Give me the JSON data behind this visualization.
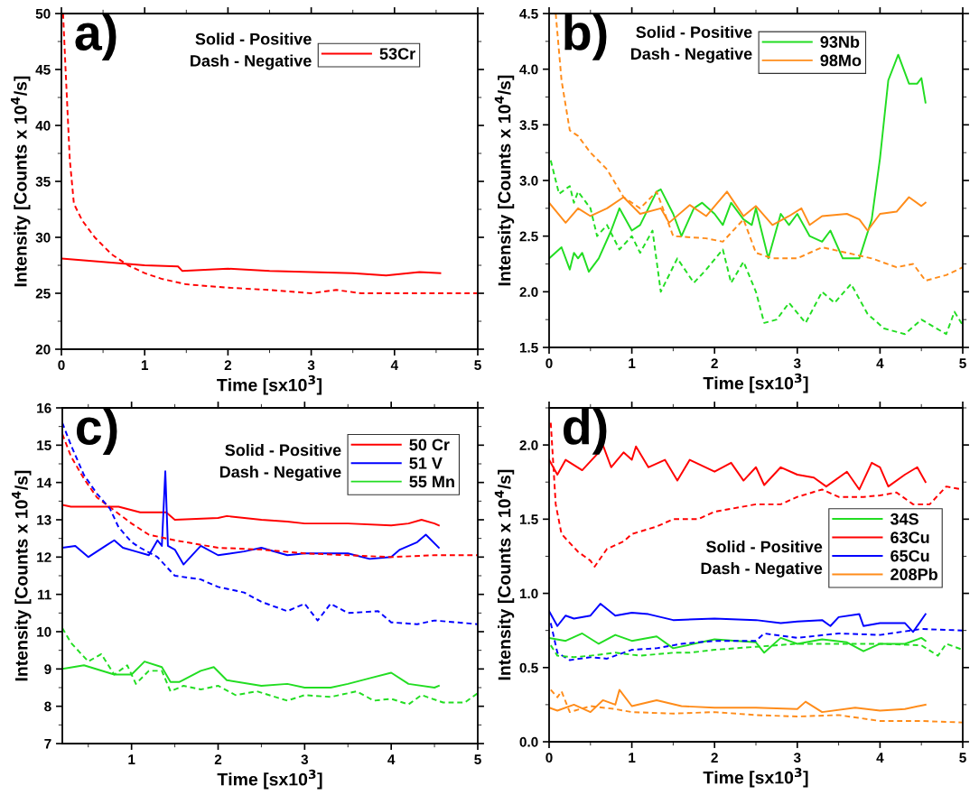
{
  "chart_data": [
    {
      "type": "line",
      "xlabel": "Time [sx10$^{3}$]",
      "ylabel": "Intensity [Counts x 10$^{4}$/s]",
      "annotations": [
        "a)",
        "Solid - Positive",
        "Dash - Negative"
      ],
      "xlim": [
        0,
        5
      ],
      "xticks": [
        0,
        1,
        2,
        3,
        4,
        5
      ],
      "ylim": [
        20,
        50
      ],
      "yticks": [
        20,
        25,
        30,
        35,
        40,
        45,
        50
      ],
      "legend": "top right",
      "grid": false,
      "series": [
        {
          "name": "53Cr",
          "color": "#ff0000",
          "line_style": "solid",
          "x": [
            0,
            0.5,
            1.0,
            1.4,
            1.45,
            2,
            2.5,
            3,
            3.5,
            3.9,
            4.3,
            4.55
          ],
          "values": [
            28.1,
            27.8,
            27.5,
            27.4,
            27.0,
            27.2,
            27.0,
            26.9,
            26.8,
            26.6,
            26.9,
            26.8
          ]
        },
        {
          "color": "#ff0000",
          "line_style": "dashed",
          "x": [
            0.02,
            0.05,
            0.1,
            0.15,
            0.25,
            0.4,
            0.6,
            0.8,
            1.0,
            1.2,
            1.5,
            2.0,
            2.5,
            3.0,
            3.3,
            3.6,
            4.0,
            4.5,
            5.0
          ],
          "values": [
            50,
            45,
            37,
            33,
            31.5,
            30,
            28.5,
            27.5,
            26.8,
            26.3,
            25.8,
            25.5,
            25.3,
            25.0,
            25.3,
            25.0,
            25.0,
            25.0,
            25.0
          ]
        }
      ]
    },
    {
      "type": "line",
      "xlabel": "Time [sx10$^{3}$]",
      "ylabel": "Intensity [Counts x 10$^{4}$/s]",
      "annotations": [
        "b)",
        "Solid - Positive",
        "Dash - Negative"
      ],
      "xlim": [
        0,
        5
      ],
      "xticks": [
        0,
        1,
        2,
        3,
        4,
        5
      ],
      "ylim": [
        1.5,
        4.5
      ],
      "yticks": [
        1.5,
        {
          "value": 2,
          "label": "2.0"
        },
        2.5,
        {
          "value": 3,
          "label": "3.0"
        },
        3.5,
        {
          "value": 4,
          "label": "4.0"
        },
        4.5
      ],
      "legend": "top right",
      "grid": false,
      "series": [
        {
          "name": "93Nb",
          "color": "#22dd22",
          "line_style": "solid",
          "x": [
            0,
            0.15,
            0.25,
            0.3,
            0.35,
            0.4,
            0.48,
            0.6,
            0.75,
            0.85,
            1.0,
            1.1,
            1.2,
            1.3,
            1.35,
            1.5,
            1.6,
            1.75,
            1.85,
            2.0,
            2.1,
            2.2,
            2.35,
            2.45,
            2.5,
            2.65,
            2.8,
            2.9,
            3.0,
            3.15,
            3.3,
            3.4,
            3.55,
            3.75,
            3.9,
            4.0,
            4.1,
            4.22,
            4.35,
            4.45,
            4.5,
            4.55
          ],
          "values": [
            2.3,
            2.4,
            2.2,
            2.35,
            2.3,
            2.35,
            2.18,
            2.3,
            2.55,
            2.75,
            2.55,
            2.6,
            2.75,
            2.9,
            2.92,
            2.7,
            2.5,
            2.75,
            2.8,
            2.7,
            2.6,
            2.8,
            2.65,
            2.6,
            2.75,
            2.3,
            2.7,
            2.6,
            2.7,
            2.5,
            2.45,
            2.55,
            2.3,
            2.3,
            2.65,
            3.2,
            3.9,
            4.13,
            3.87,
            3.87,
            3.92,
            3.7
          ]
        },
        {
          "name": "98Mo",
          "color": "#ff8c1a",
          "line_style": "solid",
          "x": [
            0,
            0.2,
            0.35,
            0.5,
            0.7,
            0.9,
            1.1,
            1.35,
            1.45,
            1.7,
            1.9,
            2.15,
            2.35,
            2.5,
            2.7,
            2.9,
            3.05,
            3.15,
            3.3,
            3.6,
            3.75,
            3.85,
            4.0,
            4.2,
            4.35,
            4.5,
            4.55
          ],
          "values": [
            2.8,
            2.62,
            2.75,
            2.68,
            2.75,
            2.85,
            2.7,
            2.75,
            2.62,
            2.78,
            2.68,
            2.9,
            2.68,
            2.77,
            2.6,
            2.68,
            2.75,
            2.6,
            2.68,
            2.7,
            2.65,
            2.55,
            2.7,
            2.72,
            2.85,
            2.77,
            2.8
          ]
        },
        {
          "color": "#ff8c1a",
          "line_style": "dashed",
          "x": [
            0.08,
            0.15,
            0.25,
            0.35,
            0.5,
            0.7,
            0.9,
            1.1,
            1.3,
            1.5,
            1.9,
            2.1,
            2.35,
            2.5,
            2.7,
            3.0,
            3.3,
            3.6,
            3.9,
            4.2,
            4.4,
            4.55,
            4.8,
            5.0
          ],
          "values": [
            4.5,
            3.9,
            3.45,
            3.4,
            3.25,
            3.1,
            2.85,
            2.75,
            2.9,
            2.5,
            2.48,
            2.45,
            2.65,
            2.35,
            2.3,
            2.3,
            2.4,
            2.35,
            2.3,
            2.22,
            2.25,
            2.1,
            2.15,
            2.22
          ]
        },
        {
          "color": "#22dd22",
          "line_style": "dashed",
          "x": [
            0.02,
            0.12,
            0.25,
            0.3,
            0.35,
            0.5,
            0.58,
            0.7,
            0.85,
            1.0,
            1.1,
            1.25,
            1.35,
            1.55,
            1.75,
            1.9,
            2.1,
            2.2,
            2.35,
            2.5,
            2.6,
            2.75,
            2.9,
            3.1,
            3.3,
            3.45,
            3.65,
            3.85,
            4.05,
            4.3,
            4.5,
            4.8,
            4.9,
            5.0
          ],
          "values": [
            3.18,
            2.88,
            2.95,
            2.8,
            2.9,
            2.75,
            2.5,
            2.6,
            2.38,
            2.5,
            2.35,
            2.55,
            2.0,
            2.3,
            2.08,
            2.2,
            2.38,
            2.08,
            2.27,
            2.0,
            1.72,
            1.75,
            1.9,
            1.72,
            2.0,
            1.9,
            2.07,
            1.8,
            1.67,
            1.62,
            1.75,
            1.62,
            1.82,
            1.7
          ]
        }
      ]
    },
    {
      "type": "line",
      "xlabel": "Time [sx10$^{3}$]",
      "ylabel": "Intensity [Counts x 10$^{4}$/s]",
      "annotations": [
        "c)",
        "Solid - Positive",
        "Dash - Negative"
      ],
      "xlim": [
        0.2,
        5
      ],
      "xticks": [
        1,
        2,
        3,
        4,
        5
      ],
      "ylim": [
        7,
        16
      ],
      "yticks": [
        7,
        8,
        9,
        10,
        11,
        12,
        13,
        14,
        15,
        16
      ],
      "legend": "top right",
      "grid": false,
      "series": [
        {
          "name": "50 Cr",
          "color": "#ff0000",
          "line_style": "solid",
          "x": [
            0.2,
            0.3,
            0.6,
            0.85,
            1.1,
            1.4,
            1.5,
            2.0,
            2.1,
            2.5,
            2.8,
            3.0,
            3.5,
            4.0,
            4.2,
            4.35,
            4.5,
            4.55
          ],
          "values": [
            13.4,
            13.35,
            13.35,
            13.35,
            13.2,
            13.2,
            13.0,
            13.05,
            13.1,
            13.0,
            12.95,
            12.9,
            12.9,
            12.85,
            12.9,
            13.0,
            12.9,
            12.85
          ]
        },
        {
          "name": "51 V",
          "color": "#0000ff",
          "line_style": "solid",
          "x": [
            0.2,
            0.35,
            0.5,
            0.7,
            0.8,
            0.9,
            1.05,
            1.2,
            1.3,
            1.35,
            1.39,
            1.42,
            1.5,
            1.6,
            1.8,
            2.0,
            2.3,
            2.5,
            2.8,
            3.0,
            3.3,
            3.5,
            3.75,
            4.0,
            4.1,
            4.3,
            4.4,
            4.55
          ],
          "values": [
            12.25,
            12.3,
            12.0,
            12.3,
            12.45,
            12.25,
            12.15,
            12.05,
            12.45,
            12.3,
            14.3,
            12.3,
            12.2,
            11.8,
            12.3,
            12.05,
            12.15,
            12.25,
            12.05,
            12.1,
            12.1,
            12.1,
            11.95,
            12.0,
            12.2,
            12.4,
            12.6,
            12.25
          ]
        },
        {
          "name": "55 Mn",
          "color": "#22dd22",
          "line_style": "solid",
          "x": [
            0.2,
            0.45,
            0.8,
            1.0,
            1.15,
            1.35,
            1.45,
            1.55,
            1.8,
            1.95,
            2.1,
            2.5,
            2.8,
            3.0,
            3.3,
            3.5,
            3.75,
            4.0,
            4.2,
            4.5,
            4.55
          ],
          "values": [
            9.0,
            9.1,
            8.85,
            8.85,
            9.2,
            9.05,
            8.65,
            8.65,
            8.95,
            9.05,
            8.7,
            8.55,
            8.6,
            8.5,
            8.5,
            8.6,
            8.75,
            8.9,
            8.6,
            8.5,
            8.55
          ]
        },
        {
          "color": "#ff0000",
          "line_style": "dashed",
          "x": [
            0.2,
            0.3,
            0.45,
            0.6,
            0.8,
            1.0,
            1.2,
            1.5,
            2.0,
            2.5,
            3.0,
            3.5,
            4.0,
            4.5,
            5.0
          ],
          "values": [
            15.3,
            14.7,
            14.1,
            13.6,
            13.25,
            12.9,
            12.6,
            12.45,
            12.25,
            12.2,
            12.1,
            12.05,
            12.0,
            12.05,
            12.05
          ]
        },
        {
          "color": "#0000ff",
          "line_style": "dashed",
          "x": [
            0.2,
            0.3,
            0.45,
            0.6,
            0.75,
            0.85,
            1.0,
            1.1,
            1.3,
            1.5,
            1.8,
            2.0,
            2.3,
            2.5,
            2.8,
            3.0,
            3.15,
            3.3,
            3.5,
            3.85,
            4.0,
            4.3,
            4.5,
            5.0
          ],
          "values": [
            15.6,
            15.0,
            14.2,
            13.7,
            13.3,
            12.8,
            12.4,
            12.25,
            12.0,
            11.5,
            11.4,
            11.2,
            11.05,
            10.8,
            10.55,
            10.75,
            10.3,
            10.75,
            10.5,
            10.55,
            10.25,
            10.2,
            10.3,
            10.2
          ]
        },
        {
          "color": "#22dd22",
          "line_style": "dashed",
          "x": [
            0.2,
            0.3,
            0.5,
            0.65,
            0.8,
            0.95,
            1.05,
            1.2,
            1.35,
            1.45,
            1.6,
            1.8,
            2.0,
            2.2,
            2.45,
            2.8,
            3.0,
            3.3,
            3.6,
            3.8,
            4.0,
            4.2,
            4.35,
            4.6,
            4.85,
            5.0
          ],
          "values": [
            10.1,
            9.7,
            9.2,
            9.4,
            8.85,
            9.1,
            8.6,
            8.95,
            8.95,
            8.4,
            8.55,
            8.45,
            8.55,
            8.3,
            8.4,
            8.15,
            8.3,
            8.25,
            8.4,
            8.15,
            8.2,
            8.05,
            8.3,
            8.1,
            8.1,
            8.35
          ]
        }
      ]
    },
    {
      "type": "line",
      "xlabel": "Time [sx10$^{3}$]",
      "ylabel": "Intensity [Counts x 10$^{4}$/s]",
      "annotations": [
        "d)",
        "Solid - Positive",
        "Dash - Negative"
      ],
      "xlim": [
        0,
        5
      ],
      "xticks": [
        0,
        1,
        2,
        3,
        4,
        5
      ],
      "ylim": [
        0,
        2.25
      ],
      "yticks": [
        {
          "value": 0,
          "label": "0.0"
        },
        0.5,
        {
          "value": 1,
          "label": "1.0"
        },
        1.5,
        {
          "value": 2,
          "label": "2.0"
        }
      ],
      "legend": "right",
      "grid": false,
      "series": [
        {
          "name": "34S",
          "color": "#22dd22",
          "line_style": "solid",
          "x": [
            0,
            0.2,
            0.4,
            0.6,
            0.8,
            1.0,
            1.3,
            1.5,
            2.0,
            2.5,
            2.6,
            2.8,
            3.0,
            3.3,
            3.6,
            3.8,
            4.0,
            4.3,
            4.5,
            4.55
          ],
          "values": [
            0.7,
            0.68,
            0.73,
            0.66,
            0.72,
            0.68,
            0.71,
            0.63,
            0.69,
            0.67,
            0.6,
            0.7,
            0.66,
            0.69,
            0.67,
            0.61,
            0.66,
            0.66,
            0.7,
            0.68
          ]
        },
        {
          "name": "63Cu",
          "color": "#ff0000",
          "line_style": "solid",
          "x": [
            0,
            0.1,
            0.2,
            0.4,
            0.6,
            0.65,
            0.75,
            0.9,
            1.0,
            1.05,
            1.2,
            1.4,
            1.55,
            1.7,
            2.0,
            2.2,
            2.35,
            2.5,
            2.6,
            2.8,
            3.0,
            3.2,
            3.35,
            3.6,
            3.75,
            3.9,
            4.0,
            4.1,
            4.3,
            4.45,
            4.55
          ],
          "values": [
            1.9,
            1.8,
            1.9,
            1.83,
            1.95,
            2.0,
            1.85,
            1.95,
            1.9,
            1.99,
            1.85,
            1.9,
            1.76,
            1.9,
            1.82,
            1.88,
            1.76,
            1.85,
            1.73,
            1.85,
            1.8,
            1.78,
            1.72,
            1.82,
            1.7,
            1.88,
            1.85,
            1.72,
            1.8,
            1.85,
            1.75
          ]
        },
        {
          "name": "65Cu",
          "color": "#0000ff",
          "line_style": "solid",
          "x": [
            0,
            0.1,
            0.2,
            0.3,
            0.5,
            0.62,
            0.8,
            1.0,
            1.2,
            1.5,
            2.0,
            2.5,
            2.8,
            3.0,
            3.3,
            3.4,
            3.5,
            3.75,
            3.8,
            4.0,
            4.3,
            4.4,
            4.55
          ],
          "values": [
            0.88,
            0.78,
            0.85,
            0.83,
            0.85,
            0.93,
            0.85,
            0.87,
            0.86,
            0.82,
            0.83,
            0.82,
            0.8,
            0.81,
            0.82,
            0.78,
            0.84,
            0.86,
            0.78,
            0.8,
            0.8,
            0.74,
            0.86
          ]
        },
        {
          "name": "208Pb",
          "color": "#ff8c1a",
          "line_style": "solid",
          "x": [
            0,
            0.1,
            0.3,
            0.5,
            0.65,
            0.8,
            0.85,
            1.0,
            1.3,
            1.6,
            2.0,
            2.5,
            3.0,
            3.1,
            3.3,
            3.7,
            4.0,
            4.3,
            4.55
          ],
          "values": [
            0.23,
            0.21,
            0.25,
            0.2,
            0.28,
            0.25,
            0.35,
            0.24,
            0.28,
            0.24,
            0.23,
            0.23,
            0.22,
            0.27,
            0.2,
            0.23,
            0.21,
            0.22,
            0.25
          ]
        },
        {
          "color": "#ff0000",
          "line_style": "dashed",
          "x": [
            0.02,
            0.08,
            0.15,
            0.35,
            0.5,
            0.55,
            0.7,
            0.9,
            1.0,
            1.3,
            1.5,
            1.8,
            2.0,
            2.3,
            2.5,
            2.8,
            3.0,
            3.3,
            3.5,
            3.8,
            4.0,
            4.2,
            4.4,
            4.6,
            4.8,
            5.0
          ],
          "values": [
            2.15,
            1.6,
            1.4,
            1.28,
            1.22,
            1.18,
            1.3,
            1.35,
            1.4,
            1.45,
            1.5,
            1.5,
            1.55,
            1.58,
            1.6,
            1.6,
            1.65,
            1.7,
            1.65,
            1.65,
            1.66,
            1.68,
            1.6,
            1.6,
            1.72,
            1.7
          ]
        },
        {
          "color": "#0000ff",
          "line_style": "dashed",
          "x": [
            0.02,
            0.1,
            0.25,
            0.5,
            0.7,
            1.0,
            1.3,
            1.6,
            2.0,
            2.5,
            2.6,
            3.0,
            3.5,
            4.0,
            4.5,
            5.0
          ],
          "values": [
            0.8,
            0.6,
            0.55,
            0.57,
            0.56,
            0.62,
            0.63,
            0.66,
            0.68,
            0.68,
            0.73,
            0.7,
            0.73,
            0.72,
            0.76,
            0.75
          ]
        },
        {
          "color": "#22dd22",
          "line_style": "dashed",
          "x": [
            0.02,
            0.1,
            0.3,
            0.5,
            0.8,
            1.1,
            1.5,
            1.7,
            2.0,
            2.5,
            3.0,
            3.5,
            4.0,
            4.5,
            4.7,
            4.8,
            5.0
          ],
          "values": [
            0.65,
            0.58,
            0.57,
            0.58,
            0.6,
            0.58,
            0.6,
            0.6,
            0.62,
            0.64,
            0.66,
            0.66,
            0.66,
            0.65,
            0.58,
            0.66,
            0.62
          ]
        },
        {
          "color": "#ff8c1a",
          "line_style": "dashed",
          "x": [
            0.02,
            0.1,
            0.15,
            0.25,
            0.5,
            0.8,
            1.0,
            1.5,
            2.0,
            2.5,
            3.0,
            3.5,
            4.0,
            4.5,
            5.0
          ],
          "values": [
            0.35,
            0.3,
            0.34,
            0.2,
            0.24,
            0.22,
            0.2,
            0.19,
            0.2,
            0.18,
            0.17,
            0.18,
            0.14,
            0.14,
            0.13
          ]
        }
      ]
    }
  ]
}
